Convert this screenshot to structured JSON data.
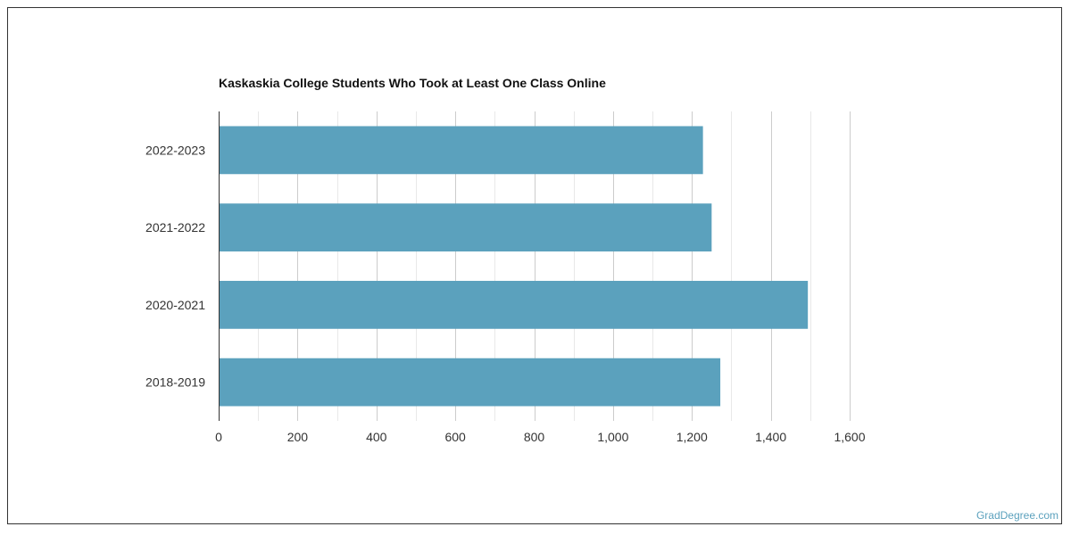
{
  "chart_data": {
    "type": "bar",
    "orientation": "horizontal",
    "title": "Kaskaskia College Students Who Took at Least One Class Online",
    "categories": [
      "2022-2023",
      "2021-2022",
      "2020-2021",
      "2018-2019"
    ],
    "values": [
      1228,
      1250,
      1494,
      1272
    ],
    "xlim": [
      0,
      1600
    ],
    "x_ticks": [
      "0",
      "200",
      "400",
      "600",
      "800",
      "1,000",
      "1,200",
      "1,400",
      "1,600"
    ],
    "xlabel": "",
    "ylabel": "",
    "bar_color": "#5ba1bd",
    "grid": true
  },
  "watermark": "GradDegree.com"
}
